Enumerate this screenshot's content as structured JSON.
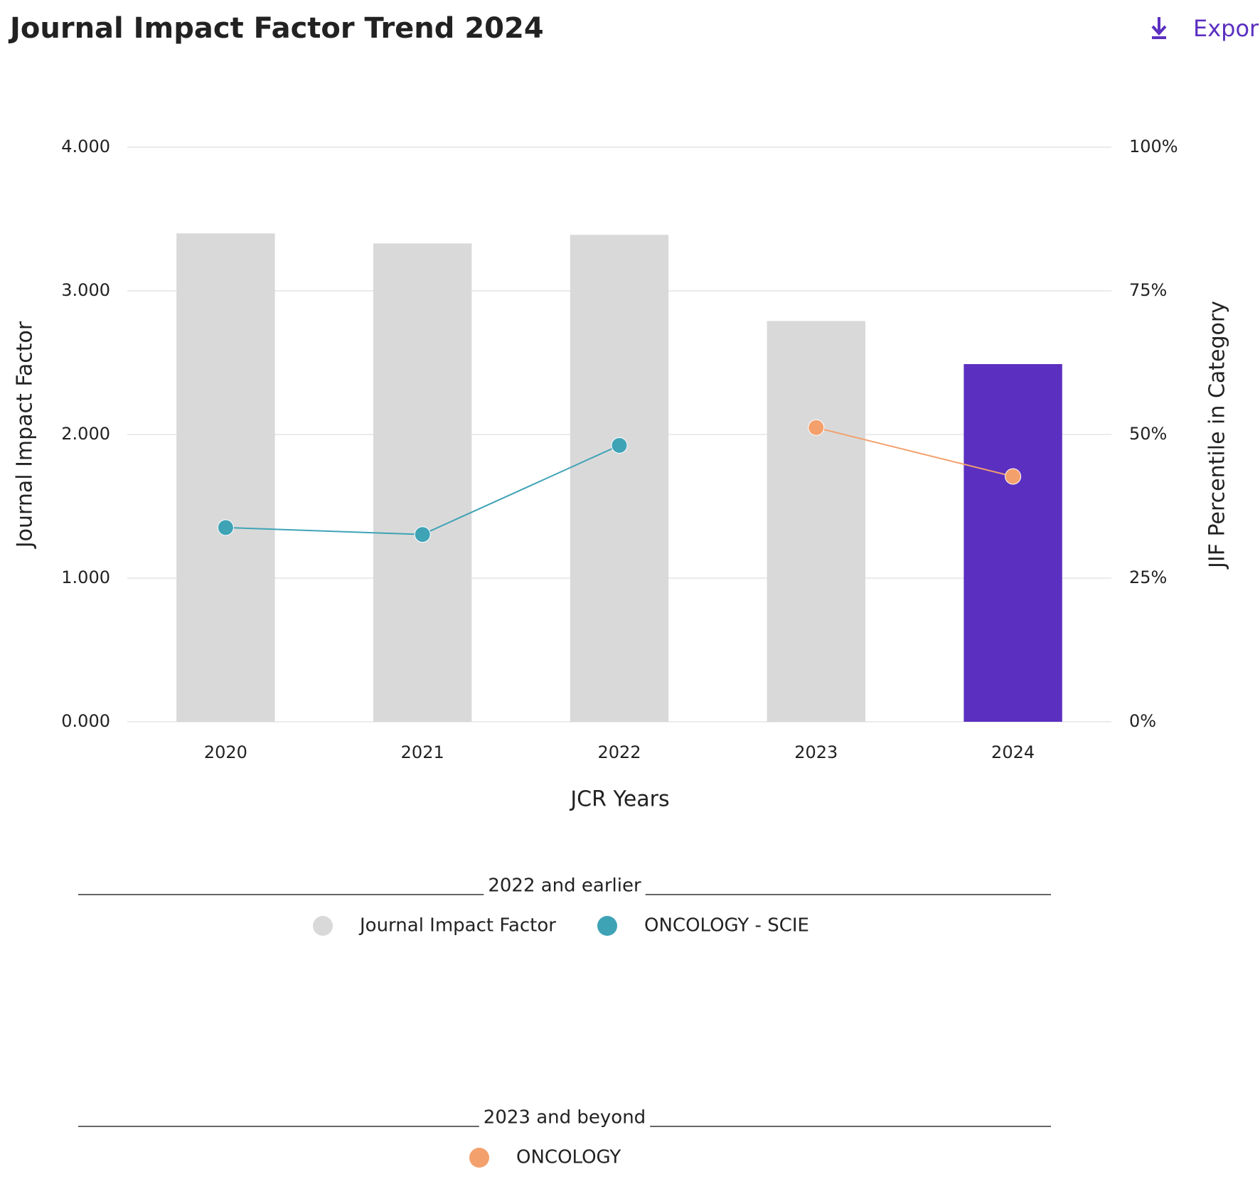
{
  "chart_data": {
    "type": "bar-line",
    "title": "Journal Impact Factor Trend 2024",
    "export_label": "Expor",
    "x_label": "JCR Years",
    "y_label": "Journal Impact Factor",
    "y2_label": "JIF Percentile in Category",
    "categories": [
      "2020",
      "2021",
      "2022",
      "2023",
      "2024"
    ],
    "series": [
      {
        "name": "Journal Impact Factor",
        "type": "bar",
        "color": "#d9d9d9",
        "colors": [
          "#d9d9d9",
          "#d9d9d9",
          "#d9d9d9",
          "#d9d9d9",
          "#5b2fc0"
        ],
        "values": [
          3.4,
          3.33,
          3.39,
          2.79,
          2.49
        ]
      },
      {
        "name": "ONCOLOGY - SCIE",
        "type": "line",
        "axis": "y2",
        "color": "#3fa3b6",
        "values": [
          33.8,
          32.6,
          48.1,
          null,
          null
        ]
      },
      {
        "name": "ONCOLOGY",
        "type": "line",
        "axis": "y2",
        "color": "#f4a06c",
        "values": [
          null,
          null,
          null,
          51.2,
          42.7
        ]
      }
    ],
    "legend_groups": [
      {
        "title": "2022 and earlier",
        "series": [
          0,
          1
        ]
      },
      {
        "title": "2023 and beyond",
        "series": [
          2
        ]
      }
    ],
    "ylim": [
      0,
      4
    ],
    "yticks": [
      {
        "value": 0,
        "label": "0.000"
      },
      {
        "value": 1,
        "label": "1.000"
      },
      {
        "value": 2,
        "label": "2.000"
      },
      {
        "value": 3,
        "label": "3.000"
      },
      {
        "value": 4,
        "label": "4.000"
      }
    ],
    "y2lim": [
      0,
      100
    ],
    "y2ticks": [
      {
        "value": 0,
        "label": "0%"
      },
      {
        "value": 25,
        "label": "25%"
      },
      {
        "value": 50,
        "label": "50%"
      },
      {
        "value": 75,
        "label": "75%"
      },
      {
        "value": 100,
        "label": "100%"
      }
    ],
    "grid": true
  }
}
